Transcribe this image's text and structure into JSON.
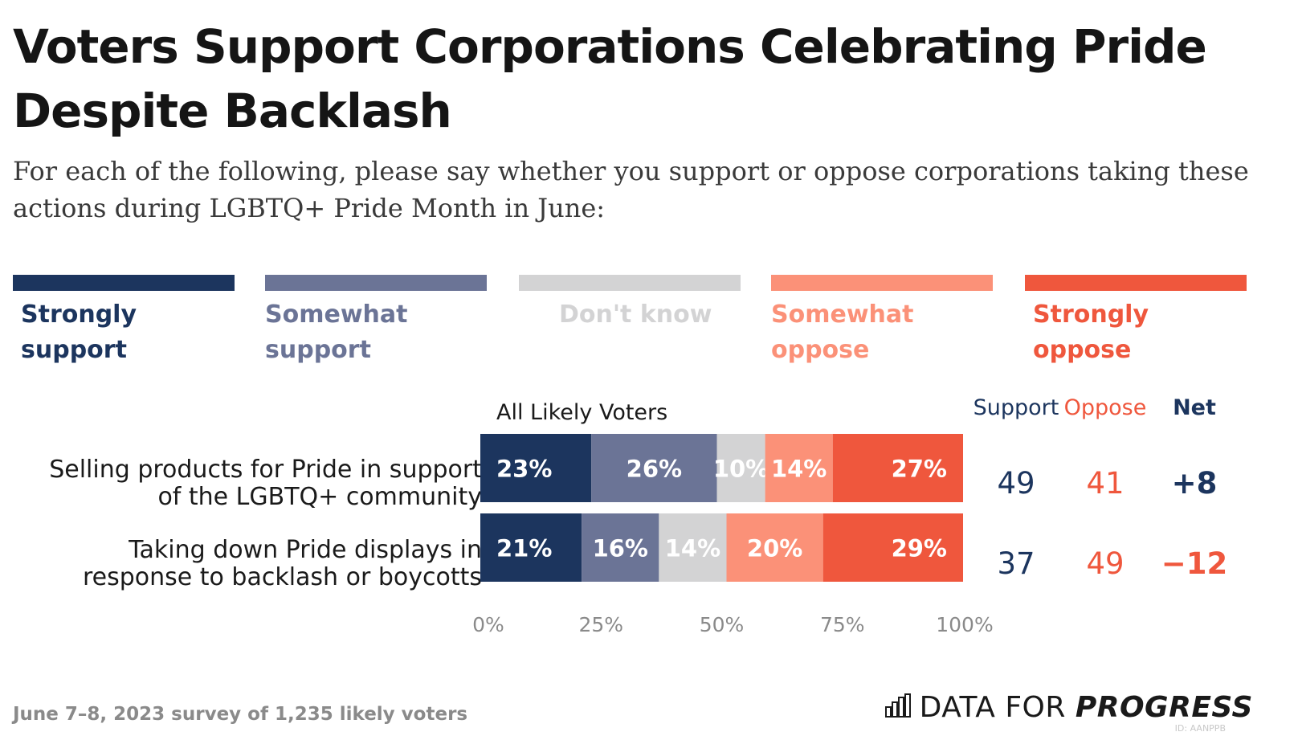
{
  "title": "Voters Support Corporations Celebrating Pride Despite Backlash",
  "subtitle": "For each of the following, please say whether you support or oppose corporations taking these actions during LGBTQ+ Pride Month in June:",
  "legend": [
    {
      "label": "Strongly support",
      "color": "#1c355e",
      "text_color": "#1c355e"
    },
    {
      "label": "Somewhat support",
      "color": "#6b7496",
      "text_color": "#6b7496"
    },
    {
      "label": "Don't know",
      "color": "#d3d3d4",
      "text_color": "#d3d3d4"
    },
    {
      "label": "Somewhat oppose",
      "color": "#fb9178",
      "text_color": "#fb9178"
    },
    {
      "label": "Strongly oppose",
      "color": "#ef573d",
      "text_color": "#ef573d"
    }
  ],
  "group_label": "All Likely Voters",
  "column_headers": {
    "support": "Support",
    "oppose": "Oppose",
    "net": "Net"
  },
  "column_colors": {
    "support": "#1c355e",
    "oppose": "#ef573d",
    "net_positive": "#1c355e",
    "net_negative": "#ef573d"
  },
  "rows": [
    {
      "label": "Selling products for Pride in support of the LGBTQ+ community",
      "support": "49",
      "oppose": "41",
      "net": "+8",
      "net_sign": "positive"
    },
    {
      "label": "Taking down Pride displays in response to backlash or boycotts",
      "support": "37",
      "oppose": "49",
      "net": "−12",
      "net_sign": "negative"
    }
  ],
  "chart_data": {
    "type": "bar",
    "orientation": "horizontal",
    "stacked": true,
    "categories": [
      "Selling products for Pride in support of the LGBTQ+ community",
      "Taking down Pride displays in response to backlash or boycotts"
    ],
    "series": [
      {
        "name": "Strongly support",
        "values": [
          23,
          21
        ],
        "labels": [
          "23%",
          "21%"
        ]
      },
      {
        "name": "Somewhat support",
        "values": [
          26,
          16
        ],
        "labels": [
          "26%",
          "16%"
        ]
      },
      {
        "name": "Don't know",
        "values": [
          10,
          14
        ],
        "labels": [
          "10%",
          "14%"
        ]
      },
      {
        "name": "Somewhat oppose",
        "values": [
          14,
          20
        ],
        "labels": [
          "14%",
          "20%"
        ]
      },
      {
        "name": "Strongly oppose",
        "values": [
          27,
          29
        ],
        "labels": [
          "27%",
          "29%"
        ]
      }
    ],
    "xlim": [
      0,
      100
    ],
    "xticks": [
      "0%",
      "25%",
      "50%",
      "75%",
      "100%"
    ],
    "legend_position": "top",
    "grid": false
  },
  "footer": {
    "note": "June 7–8, 2023 survey of 1,235 likely voters",
    "brand_plain": "DATA FOR",
    "brand_bold": "PROGRESS",
    "chart_id": "ID: AANPPB"
  }
}
